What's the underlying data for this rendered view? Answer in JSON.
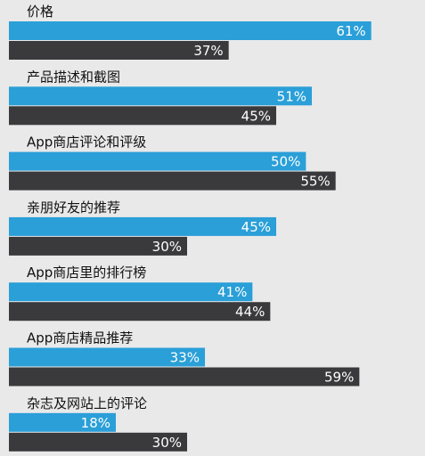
{
  "chart_data": {
    "type": "bar",
    "orientation": "horizontal",
    "categories": [
      "价格",
      "产品描述和截图",
      "App商店评论和评级",
      "亲朋好友的推荐",
      "App商店里的排行榜",
      "App商店精品推荐",
      "杂志及网站上的评论"
    ],
    "series": [
      {
        "values": [
          61,
          51,
          50,
          45,
          41,
          33,
          18
        ],
        "color": "#2a9fd8"
      },
      {
        "values": [
          37,
          45,
          55,
          30,
          44,
          59,
          30
        ],
        "color": "#3a3a3c"
      }
    ],
    "value_labels": {
      "s0": [
        "61%",
        "51%",
        "50%",
        "45%",
        "41%",
        "33%",
        "18%"
      ],
      "s1": [
        "37%",
        "45%",
        "55%",
        "30%",
        "44%",
        "59%",
        "30%"
      ]
    },
    "xlim": [
      0,
      69
    ],
    "grid": false,
    "legend": "none"
  }
}
